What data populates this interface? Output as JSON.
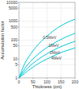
{
  "chart_data": {
    "type": "line",
    "x_label": "Thickness (cm)",
    "y_label": "Accumulation factor",
    "x": [
      0,
      10,
      20,
      30,
      40,
      50,
      60,
      70,
      80,
      90,
      100,
      120,
      140,
      160,
      180,
      200
    ],
    "series": [
      {
        "values": [
          1,
          2.5,
          5.5,
          10,
          17,
          27,
          42,
          62,
          88,
          120,
          165,
          290,
          470,
          700,
          980,
          1300
        ]
      },
      {
        "values": [
          1,
          1.8,
          3.0,
          4.8,
          7.2,
          10,
          14,
          19,
          25,
          32,
          41,
          63,
          92,
          130,
          175,
          230
        ]
      },
      {
        "values": [
          1,
          1.5,
          2.2,
          3.2,
          4.4,
          5.9,
          7.7,
          10,
          12.5,
          15.5,
          19,
          28,
          39,
          52,
          68,
          87
        ]
      },
      {
        "values": [
          1,
          1.3,
          1.7,
          2.3,
          2.9,
          3.7,
          4.7,
          5.8,
          7.1,
          8.5,
          10,
          14,
          19,
          25,
          31,
          39
        ]
      }
    ],
    "color": "#00c8d4",
    "xlim": [
      0,
      200
    ],
    "ylim": [
      1,
      10000
    ],
    "xticks": [
      0,
      50,
      100,
      150,
      200
    ],
    "yticks": [
      1,
      5,
      10,
      50,
      100,
      500,
      1000,
      5000,
      10000
    ],
    "log": "y",
    "grid": true,
    "annotations": [
      {
        "text": "0.5MeV",
        "x": 85,
        "y": 140
      },
      {
        "text": "1MeV",
        "x": 105,
        "y": 50
      },
      {
        "text": "2MeV",
        "x": 110,
        "y": 22
      },
      {
        "text": "4MeV",
        "x": 115,
        "y": 11
      }
    ]
  }
}
